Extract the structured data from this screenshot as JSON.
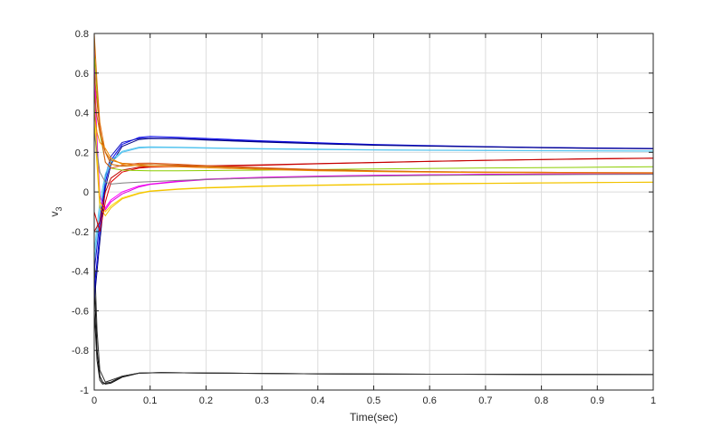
{
  "chart_data": {
    "type": "line",
    "xlabel": "Time(sec)",
    "ylabel": {
      "main": "v",
      "subscript": "3"
    },
    "xlim": [
      0,
      1
    ],
    "ylim": [
      -1,
      0.8
    ],
    "xticks": [
      0,
      0.1,
      0.2,
      0.3,
      0.4,
      0.5,
      0.6,
      0.7,
      0.8,
      0.9,
      1
    ],
    "xtick_labels": [
      "0",
      "0.1",
      "0.2",
      "0.3",
      "0.4",
      "0.5",
      "0.6",
      "0.7",
      "0.8",
      "0.9",
      "1"
    ],
    "yticks": [
      -1,
      -0.8,
      -0.6,
      -0.4,
      -0.2,
      0,
      0.2,
      0.4,
      0.6,
      0.8
    ],
    "ytick_labels": [
      "-1",
      "-0.8",
      "-0.6",
      "-0.4",
      "-0.2",
      "0",
      "0.2",
      "0.4",
      "0.6",
      "0.8"
    ],
    "grid": true,
    "series": [
      {
        "color": "#000000",
        "x": [
          0,
          0.005,
          0.01,
          0.015,
          0.02,
          0.03,
          0.05,
          0.08,
          0.12,
          0.2,
          0.4,
          0.6,
          0.8,
          1
        ],
        "y": [
          -0.45,
          -0.8,
          -0.93,
          -0.96,
          -0.97,
          -0.965,
          -0.935,
          -0.915,
          -0.912,
          -0.914,
          -0.918,
          -0.92,
          -0.921,
          -0.922
        ]
      },
      {
        "color": "#1a1a1a",
        "x": [
          0,
          0.005,
          0.01,
          0.015,
          0.02,
          0.03,
          0.05,
          0.08,
          0.12,
          0.2,
          0.4,
          0.6,
          0.8,
          1
        ],
        "y": [
          -0.6,
          -0.85,
          -0.95,
          -0.97,
          -0.965,
          -0.96,
          -0.93,
          -0.914,
          -0.912,
          -0.914,
          -0.918,
          -0.92,
          -0.921,
          -0.922
        ]
      },
      {
        "color": "#333333",
        "x": [
          0,
          0.005,
          0.01,
          0.02,
          0.03,
          0.05,
          0.08,
          0.12,
          0.2,
          0.4,
          0.6,
          0.8,
          1
        ],
        "y": [
          -0.3,
          -0.7,
          -0.9,
          -0.96,
          -0.95,
          -0.93,
          -0.915,
          -0.912,
          -0.914,
          -0.918,
          -0.92,
          -0.921,
          -0.922
        ]
      },
      {
        "color": "#0000ee",
        "x": [
          0,
          0.01,
          0.02,
          0.03,
          0.05,
          0.08,
          0.1,
          0.15,
          0.2,
          0.3,
          0.4,
          0.5,
          0.6,
          0.7,
          0.8,
          0.9,
          1
        ],
        "y": [
          -0.5,
          -0.2,
          0.05,
          0.16,
          0.24,
          0.275,
          0.28,
          0.276,
          0.27,
          0.258,
          0.248,
          0.24,
          0.234,
          0.229,
          0.225,
          0.222,
          0.22
        ]
      },
      {
        "color": "#1010c0",
        "x": [
          0,
          0.01,
          0.02,
          0.03,
          0.05,
          0.08,
          0.1,
          0.15,
          0.2,
          0.3,
          0.4,
          0.5,
          0.6,
          0.7,
          0.8,
          0.9,
          1
        ],
        "y": [
          -0.4,
          -0.15,
          0.08,
          0.18,
          0.25,
          0.27,
          0.272,
          0.27,
          0.265,
          0.255,
          0.245,
          0.238,
          0.232,
          0.228,
          0.224,
          0.221,
          0.219
        ]
      },
      {
        "color": "#000080",
        "x": [
          0,
          0.01,
          0.02,
          0.03,
          0.05,
          0.08,
          0.1,
          0.15,
          0.2,
          0.3,
          0.4,
          0.5,
          0.6,
          0.7,
          0.8,
          0.9,
          1
        ],
        "y": [
          -0.55,
          -0.25,
          0.02,
          0.14,
          0.23,
          0.265,
          0.27,
          0.268,
          0.262,
          0.252,
          0.243,
          0.236,
          0.231,
          0.227,
          0.223,
          0.22,
          0.218
        ]
      },
      {
        "color": "#4dbeee",
        "x": [
          0,
          0.01,
          0.02,
          0.03,
          0.05,
          0.08,
          0.1,
          0.15,
          0.2,
          0.3,
          0.4,
          0.5,
          0.6,
          0.7,
          0.8,
          0.9,
          1
        ],
        "y": [
          -0.35,
          -0.1,
          0.07,
          0.15,
          0.2,
          0.222,
          0.225,
          0.224,
          0.221,
          0.217,
          0.214,
          0.212,
          0.21,
          0.209,
          0.208,
          0.207,
          0.206
        ]
      },
      {
        "color": "#5ac8f0",
        "x": [
          0,
          0.01,
          0.02,
          0.03,
          0.05,
          0.08,
          0.1,
          0.15,
          0.2,
          0.3,
          0.4,
          0.5,
          0.6,
          0.7,
          0.8,
          0.9,
          1
        ],
        "y": [
          -0.3,
          -0.05,
          0.09,
          0.16,
          0.205,
          0.226,
          0.228,
          0.226,
          0.223,
          0.219,
          0.216,
          0.213,
          0.211,
          0.21,
          0.209,
          0.208,
          0.207
        ]
      },
      {
        "color": "#ff00ff",
        "x": [
          0,
          0.005,
          0.01,
          0.02,
          0.03,
          0.05,
          0.08,
          0.1,
          0.15,
          0.2,
          0.3,
          0.4,
          0.5,
          0.6,
          0.7,
          0.8,
          0.9,
          1
        ],
        "y": [
          0.75,
          0.2,
          -0.05,
          -0.08,
          -0.04,
          0.0,
          0.03,
          0.04,
          0.055,
          0.065,
          0.074,
          0.08,
          0.084,
          0.087,
          0.089,
          0.09,
          0.091,
          0.092
        ]
      },
      {
        "color": "#e000e0",
        "x": [
          0,
          0.01,
          0.02,
          0.03,
          0.05,
          0.08,
          0.1,
          0.15,
          0.2,
          0.3,
          0.4,
          0.5,
          0.6,
          0.7,
          0.8,
          0.9,
          1
        ],
        "y": [
          0.55,
          -0.02,
          -0.09,
          -0.05,
          -0.01,
          0.025,
          0.038,
          0.052,
          0.062,
          0.072,
          0.078,
          0.083,
          0.086,
          0.088,
          0.09,
          0.091,
          0.092
        ]
      },
      {
        "color": "#ffd700",
        "x": [
          0,
          0.01,
          0.02,
          0.03,
          0.05,
          0.08,
          0.1,
          0.15,
          0.2,
          0.3,
          0.4,
          0.5,
          0.6,
          0.7,
          0.8,
          0.9,
          1
        ],
        "y": [
          0.45,
          -0.05,
          -0.1,
          -0.07,
          -0.03,
          -0.005,
          0.005,
          0.015,
          0.022,
          0.03,
          0.035,
          0.039,
          0.042,
          0.044,
          0.046,
          0.048,
          0.05
        ]
      },
      {
        "color": "#f0c000",
        "x": [
          0,
          0.01,
          0.02,
          0.03,
          0.05,
          0.08,
          0.1,
          0.15,
          0.2,
          0.3,
          0.4,
          0.5,
          0.6,
          0.7,
          0.8,
          0.9,
          1
        ],
        "y": [
          0.35,
          -0.08,
          -0.12,
          -0.08,
          -0.035,
          -0.008,
          0.003,
          0.013,
          0.02,
          0.028,
          0.033,
          0.037,
          0.04,
          0.043,
          0.045,
          0.047,
          0.049
        ]
      },
      {
        "color": "#e00000",
        "x": [
          0,
          0.01,
          0.02,
          0.03,
          0.05,
          0.08,
          0.1,
          0.15,
          0.2,
          0.3,
          0.4,
          0.5,
          0.6,
          0.7,
          0.8,
          0.9,
          1
        ],
        "y": [
          -0.1,
          -0.2,
          -0.05,
          0.05,
          0.1,
          0.12,
          0.125,
          0.128,
          0.13,
          0.135,
          0.142,
          0.148,
          0.154,
          0.159,
          0.163,
          0.167,
          0.17
        ]
      },
      {
        "color": "#c00000",
        "x": [
          0,
          0.01,
          0.02,
          0.03,
          0.05,
          0.08,
          0.1,
          0.15,
          0.2,
          0.3,
          0.4,
          0.5,
          0.6,
          0.7,
          0.8,
          0.9,
          1
        ],
        "y": [
          -0.2,
          -0.15,
          0.0,
          0.07,
          0.11,
          0.125,
          0.128,
          0.13,
          0.132,
          0.137,
          0.143,
          0.149,
          0.155,
          0.16,
          0.164,
          0.168,
          0.171
        ]
      },
      {
        "color": "#8ccd00",
        "x": [
          0,
          0.005,
          0.01,
          0.02,
          0.03,
          0.05,
          0.08,
          0.1,
          0.15,
          0.2,
          0.3,
          0.4,
          0.5,
          0.6,
          0.7,
          0.8,
          0.9,
          1
        ],
        "y": [
          0.7,
          0.5,
          0.3,
          0.15,
          0.12,
          0.11,
          0.108,
          0.107,
          0.107,
          0.108,
          0.11,
          0.113,
          0.116,
          0.119,
          0.121,
          0.123,
          0.125,
          0.127
        ]
      },
      {
        "color": "#e07000",
        "x": [
          0,
          0.005,
          0.01,
          0.02,
          0.03,
          0.05,
          0.08,
          0.1,
          0.15,
          0.2,
          0.3,
          0.4,
          0.5,
          0.6,
          0.7,
          0.8,
          0.9,
          1
        ],
        "y": [
          0.8,
          0.55,
          0.35,
          0.2,
          0.16,
          0.145,
          0.14,
          0.138,
          0.135,
          0.13,
          0.12,
          0.112,
          0.106,
          0.102,
          0.1,
          0.099,
          0.098,
          0.097
        ]
      },
      {
        "color": "#d95319",
        "x": [
          0,
          0.005,
          0.01,
          0.02,
          0.03,
          0.05,
          0.08,
          0.1,
          0.15,
          0.2,
          0.3,
          0.4,
          0.5,
          0.6,
          0.7,
          0.8,
          0.9,
          1
        ],
        "y": [
          0.6,
          0.45,
          0.32,
          0.15,
          0.12,
          0.135,
          0.145,
          0.146,
          0.14,
          0.133,
          0.122,
          0.113,
          0.107,
          0.103,
          0.1,
          0.099,
          0.098,
          0.097
        ]
      },
      {
        "color": "#c86400",
        "x": [
          0,
          0.005,
          0.01,
          0.02,
          0.03,
          0.05,
          0.08,
          0.1,
          0.15,
          0.2,
          0.3,
          0.4,
          0.5,
          0.6,
          0.7,
          0.8,
          0.9,
          1
        ],
        "y": [
          0.5,
          0.38,
          0.3,
          0.2,
          0.14,
          0.13,
          0.135,
          0.138,
          0.134,
          0.128,
          0.118,
          0.11,
          0.105,
          0.101,
          0.099,
          0.098,
          0.097,
          0.096
        ]
      },
      {
        "color": "#f08c00",
        "x": [
          0,
          0.005,
          0.01,
          0.02,
          0.03,
          0.05,
          0.08,
          0.1,
          0.15,
          0.2,
          0.3,
          0.4,
          0.5,
          0.6,
          0.7,
          0.8,
          0.9,
          1
        ],
        "y": [
          0.4,
          0.3,
          0.25,
          0.22,
          0.17,
          0.14,
          0.132,
          0.13,
          0.127,
          0.122,
          0.114,
          0.107,
          0.103,
          0.1,
          0.098,
          0.097,
          0.096,
          0.095
        ]
      },
      {
        "color": "#7f7f7f",
        "x": [
          0,
          0.005,
          0.01,
          0.02,
          0.03,
          0.05,
          0.08,
          0.1,
          0.15,
          0.2,
          0.3,
          0.4,
          0.5,
          0.6,
          0.7,
          0.8,
          0.9,
          1
        ],
        "y": [
          0.3,
          0.2,
          0.1,
          0.05,
          0.04,
          0.045,
          0.05,
          0.052,
          0.058,
          0.063,
          0.07,
          0.076,
          0.08,
          0.083,
          0.085,
          0.087,
          0.088,
          0.089
        ]
      }
    ]
  }
}
